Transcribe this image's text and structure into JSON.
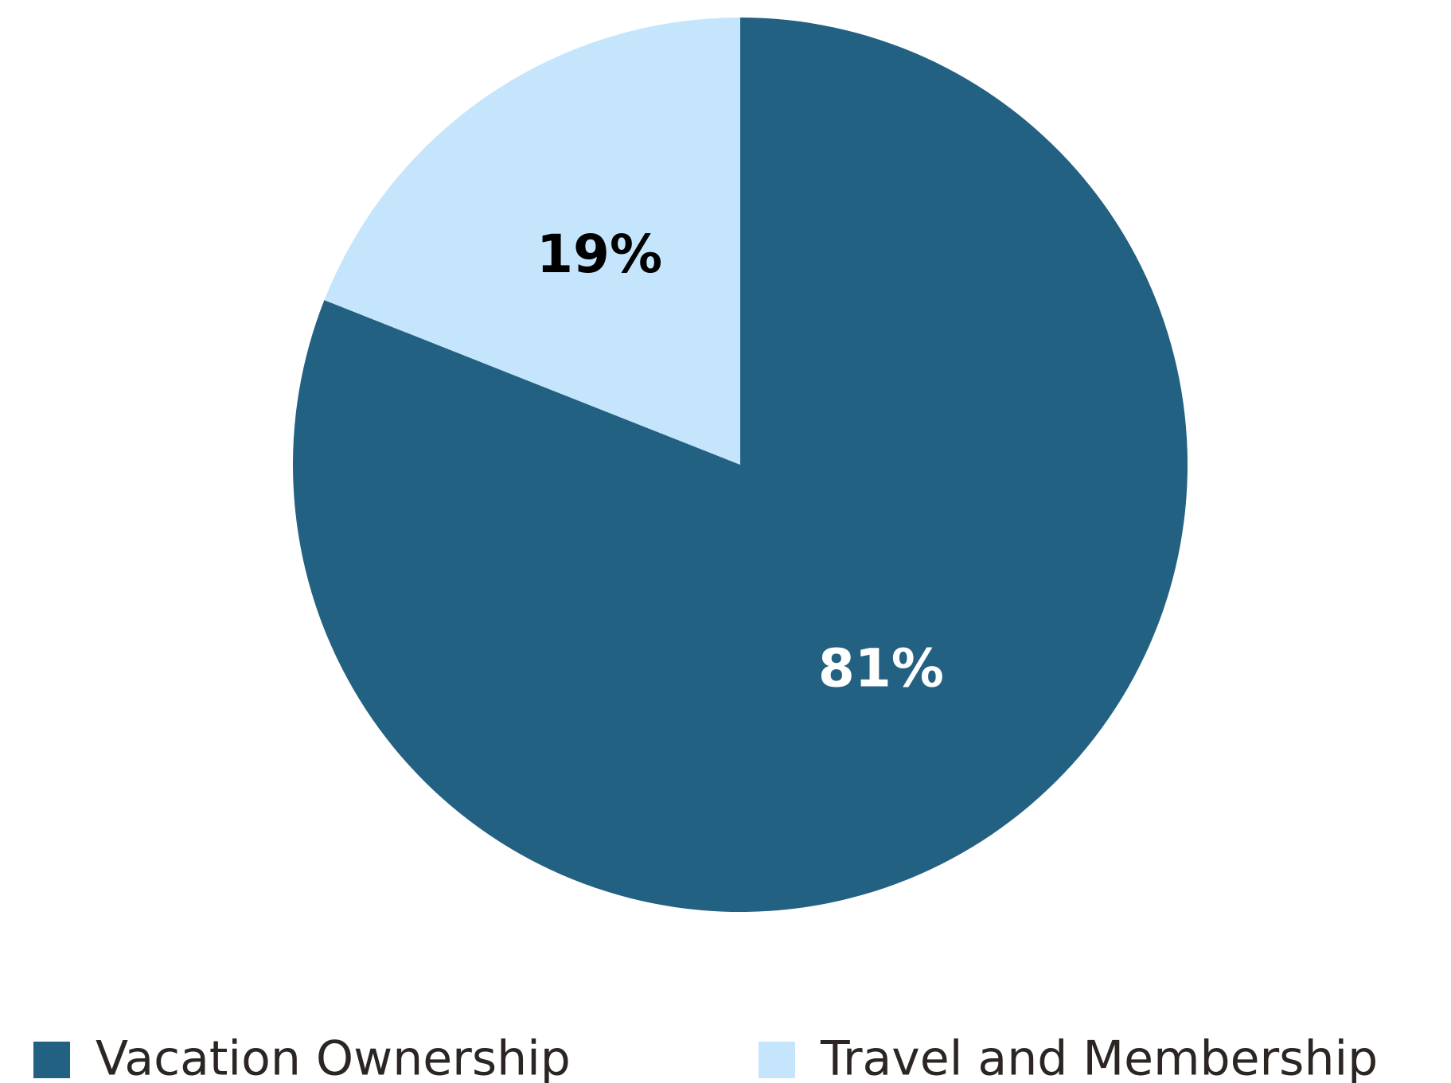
{
  "chart_data": {
    "type": "pie",
    "categories": [
      "Vacation Ownership",
      "Travel and Membership"
    ],
    "values": [
      81,
      19
    ],
    "value_labels": [
      "81%",
      "19%"
    ],
    "colors": [
      "#236182",
      "#c5e5fc"
    ],
    "label_colors": [
      "#ffffff",
      "#000000"
    ],
    "legend": "bottom"
  }
}
